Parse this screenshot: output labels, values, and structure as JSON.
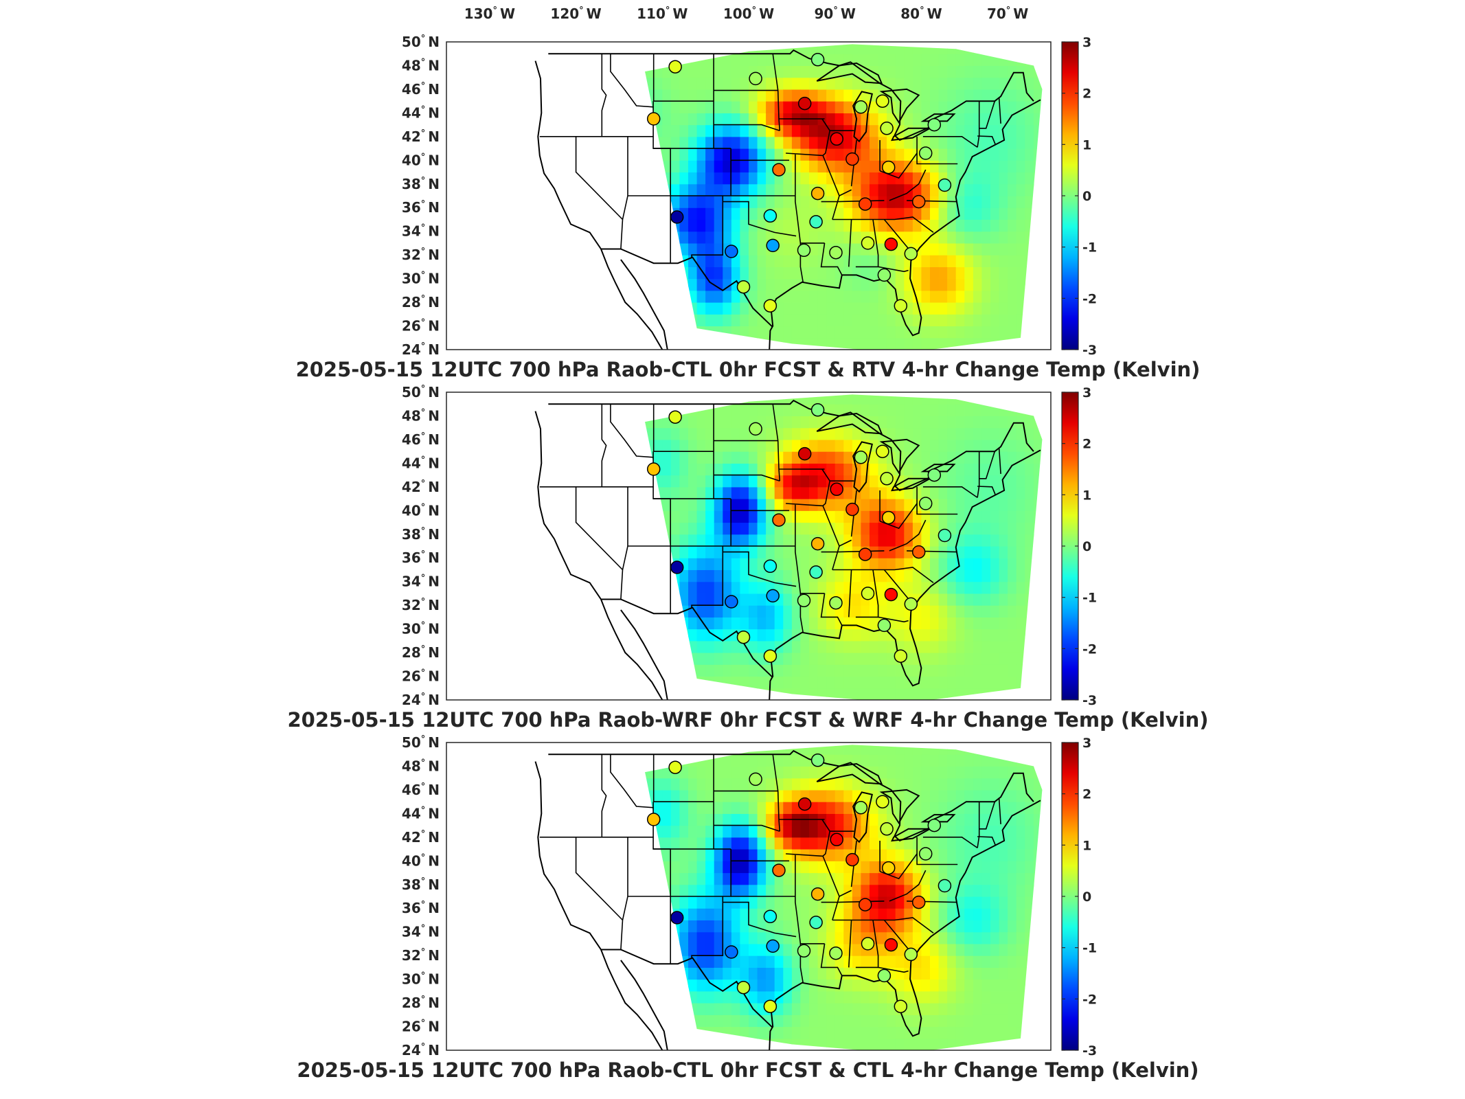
{
  "lon_ticks": [
    {
      "deg": "130",
      "hemi": "W"
    },
    {
      "deg": "120",
      "hemi": "W"
    },
    {
      "deg": "110",
      "hemi": "W"
    },
    {
      "deg": "100",
      "hemi": "W"
    },
    {
      "deg": "90",
      "hemi": "W"
    },
    {
      "deg": "80",
      "hemi": "W"
    },
    {
      "deg": "70",
      "hemi": "W"
    }
  ],
  "lat_ticks": [
    {
      "deg": "50",
      "hemi": "N"
    },
    {
      "deg": "48",
      "hemi": "N"
    },
    {
      "deg": "46",
      "hemi": "N"
    },
    {
      "deg": "44",
      "hemi": "N"
    },
    {
      "deg": "42",
      "hemi": "N"
    },
    {
      "deg": "40",
      "hemi": "N"
    },
    {
      "deg": "38",
      "hemi": "N"
    },
    {
      "deg": "36",
      "hemi": "N"
    },
    {
      "deg": "34",
      "hemi": "N"
    },
    {
      "deg": "32",
      "hemi": "N"
    },
    {
      "deg": "30",
      "hemi": "N"
    },
    {
      "deg": "28",
      "hemi": "N"
    },
    {
      "deg": "26",
      "hemi": "N"
    },
    {
      "deg": "24",
      "hemi": "N"
    }
  ],
  "colorbar": {
    "min": -3,
    "max": 3,
    "tick_labels": [
      "3",
      "2",
      "1",
      "0",
      "-1",
      "-2",
      "-3"
    ],
    "colormap": "jet"
  },
  "panels": [
    {
      "title": "2025-05-15 12UTC 700 hPa Raob-CTL 0hr FCST & RTV 4-hr Change Temp (Kelvin)"
    },
    {
      "title": "2025-05-15 12UTC 700 hPa Raob-WRF 0hr FCST & WRF 4-hr Change Temp (Kelvin)"
    },
    {
      "title": "2025-05-15 12UTC 700 hPa Raob-CTL 0hr FCST & CTL 4-hr Change Temp (Kelvin)"
    }
  ],
  "stations": [
    {
      "lon": -108.5,
      "lat": 47.9,
      "values": [
        0.6,
        0.6,
        0.6
      ]
    },
    {
      "lon": -99.2,
      "lat": 46.9,
      "values": [
        0.2,
        0.2,
        0.2
      ]
    },
    {
      "lon": -92.0,
      "lat": 48.5,
      "values": [
        0.0,
        0.0,
        0.0
      ]
    },
    {
      "lon": -111.0,
      "lat": 43.5,
      "values": [
        1.1,
        1.1,
        1.1
      ]
    },
    {
      "lon": -93.5,
      "lat": 44.8,
      "values": [
        2.5,
        2.5,
        2.5
      ]
    },
    {
      "lon": -87.0,
      "lat": 44.5,
      "values": [
        0.2,
        0.2,
        0.2
      ]
    },
    {
      "lon": -84.5,
      "lat": 45.0,
      "values": [
        0.6,
        0.6,
        0.6
      ]
    },
    {
      "lon": -84.0,
      "lat": 42.7,
      "values": [
        0.4,
        0.4,
        0.4
      ]
    },
    {
      "lon": -78.5,
      "lat": 43.0,
      "values": [
        0.0,
        0.0,
        0.0
      ]
    },
    {
      "lon": -89.8,
      "lat": 41.8,
      "values": [
        2.3,
        2.3,
        2.3
      ]
    },
    {
      "lon": -88.0,
      "lat": 40.1,
      "values": [
        1.9,
        1.9,
        1.9
      ]
    },
    {
      "lon": -83.8,
      "lat": 39.4,
      "values": [
        1.0,
        1.0,
        1.0
      ]
    },
    {
      "lon": -79.5,
      "lat": 40.6,
      "values": [
        0.1,
        0.1,
        0.1
      ]
    },
    {
      "lon": -77.3,
      "lat": 37.9,
      "values": [
        -0.3,
        -0.3,
        -0.3
      ]
    },
    {
      "lon": -96.5,
      "lat": 39.2,
      "values": [
        1.6,
        1.6,
        1.6
      ]
    },
    {
      "lon": -92.0,
      "lat": 37.2,
      "values": [
        1.2,
        1.2,
        1.2
      ]
    },
    {
      "lon": -86.5,
      "lat": 36.3,
      "values": [
        1.9,
        1.9,
        1.9
      ]
    },
    {
      "lon": -80.3,
      "lat": 36.5,
      "values": [
        1.7,
        1.7,
        1.7
      ]
    },
    {
      "lon": -108.3,
      "lat": 35.2,
      "values": [
        -2.8,
        -2.8,
        -2.8
      ]
    },
    {
      "lon": -97.5,
      "lat": 35.3,
      "values": [
        -0.7,
        -0.7,
        -0.7
      ]
    },
    {
      "lon": -92.2,
      "lat": 34.8,
      "values": [
        -0.4,
        -0.4,
        -0.4
      ]
    },
    {
      "lon": -102.0,
      "lat": 32.3,
      "values": [
        -1.6,
        -1.6,
        -1.6
      ]
    },
    {
      "lon": -97.2,
      "lat": 32.8,
      "values": [
        -1.3,
        -1.3,
        -1.3
      ]
    },
    {
      "lon": -93.6,
      "lat": 32.4,
      "values": [
        0.1,
        0.1,
        0.1
      ]
    },
    {
      "lon": -89.9,
      "lat": 32.2,
      "values": [
        0.2,
        0.2,
        0.2
      ]
    },
    {
      "lon": -86.2,
      "lat": 33.0,
      "values": [
        0.5,
        0.5,
        0.5
      ]
    },
    {
      "lon": -83.5,
      "lat": 32.9,
      "values": [
        2.2,
        2.2,
        2.2
      ]
    },
    {
      "lon": -81.2,
      "lat": 32.1,
      "values": [
        0.3,
        0.3,
        0.3
      ]
    },
    {
      "lon": -100.6,
      "lat": 29.3,
      "values": [
        0.4,
        0.4,
        0.4
      ]
    },
    {
      "lon": -97.5,
      "lat": 27.7,
      "values": [
        0.6,
        0.6,
        0.6
      ]
    },
    {
      "lon": -84.3,
      "lat": 30.3,
      "values": [
        0.1,
        0.1,
        0.1
      ]
    },
    {
      "lon": -82.4,
      "lat": 27.7,
      "values": [
        0.5,
        0.5,
        0.5
      ]
    }
  ]
}
